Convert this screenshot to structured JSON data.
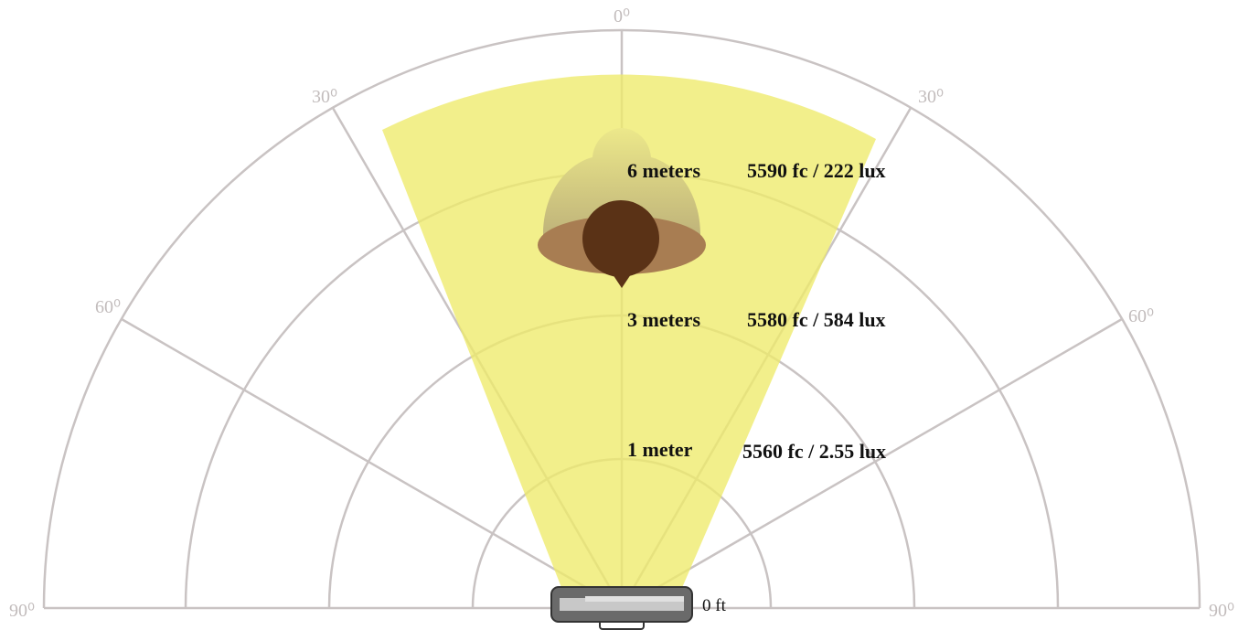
{
  "angle_labels": {
    "top": "0⁰",
    "left_30": "30⁰",
    "right_30": "30⁰",
    "left_60": "60⁰",
    "right_60": "60⁰",
    "left_90": "90⁰",
    "right_90": "90⁰"
  },
  "rings": [
    {
      "distance": "6 meters",
      "reading": "5590 fc / 222 lux"
    },
    {
      "distance": "3 meters",
      "reading": "5580 fc / 584 lux"
    },
    {
      "distance": "1 meter",
      "reading": "5560 fc / 2.55 lux"
    }
  ],
  "origin_label": "0 ft"
}
